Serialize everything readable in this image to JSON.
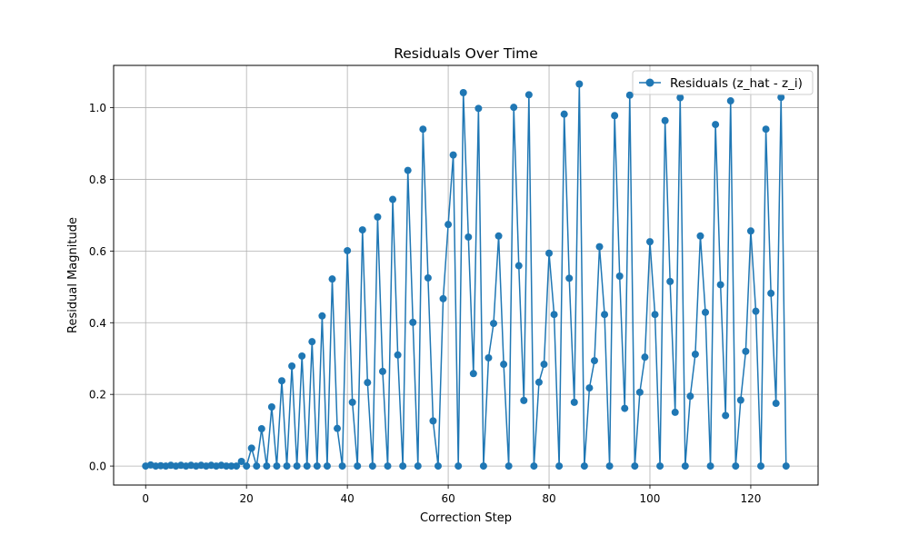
{
  "chart_data": {
    "type": "line",
    "title": "Residuals Over Time",
    "xlabel": "Correction Step",
    "ylabel": "Residual Magnitude",
    "xlim": [
      -6.35,
      133.35
    ],
    "ylim": [
      -0.053,
      1.118
    ],
    "xticks": [
      0,
      20,
      40,
      60,
      80,
      100,
      120
    ],
    "yticks": [
      0.0,
      0.2,
      0.4,
      0.6,
      0.8,
      1.0
    ],
    "xtick_labels": [
      "0",
      "20",
      "40",
      "60",
      "80",
      "100",
      "120"
    ],
    "ytick_labels": [
      "0.0",
      "0.2",
      "0.4",
      "0.6",
      "0.8",
      "1.0"
    ],
    "grid": true,
    "legend_position": "top-right",
    "series": [
      {
        "name": "Residuals (z_hat - z_i)",
        "color": "#1f77b4",
        "marker": "circle",
        "y": [
          0.0,
          0.003,
          0.0,
          0.001,
          0.0,
          0.002,
          0.0,
          0.002,
          0.0,
          0.002,
          0.0,
          0.002,
          0.0,
          0.002,
          0.0,
          0.002,
          0.0,
          0.0,
          0.0,
          0.013,
          0.0,
          0.05,
          0.0,
          0.104,
          0.0,
          0.165,
          0.0,
          0.238,
          0.0,
          0.279,
          0.0,
          0.307,
          0.0,
          0.347,
          0.0,
          0.419,
          0.0,
          0.522,
          0.105,
          0.0,
          0.601,
          0.178,
          0.0,
          0.659,
          0.233,
          0.0,
          0.695,
          0.264,
          0.0,
          0.744,
          0.31,
          0.0,
          0.825,
          0.401,
          0.0,
          0.94,
          0.525,
          0.126,
          0.0,
          0.467,
          0.674,
          0.868,
          0.0,
          1.042,
          0.639,
          0.258,
          0.998,
          0.0,
          0.302,
          0.398,
          0.642,
          0.284,
          0.0,
          1.001,
          0.559,
          0.183,
          1.036,
          0.0,
          0.234,
          0.284,
          0.594,
          0.423,
          0.0,
          0.982,
          0.524,
          0.178,
          1.066,
          0.0,
          0.218,
          0.294,
          0.612,
          0.423,
          0.0,
          0.978,
          0.53,
          0.161,
          1.035,
          0.0,
          0.206,
          0.304,
          0.626,
          0.423,
          0.0,
          0.964,
          0.515,
          0.15,
          1.028,
          0.0,
          0.195,
          0.312,
          0.642,
          0.429,
          0.0,
          0.953,
          0.506,
          0.141,
          1.019,
          0.0,
          0.184,
          0.32,
          0.656,
          0.432,
          0.0,
          0.94,
          0.482,
          0.175,
          1.029,
          0.0
        ]
      }
    ]
  }
}
